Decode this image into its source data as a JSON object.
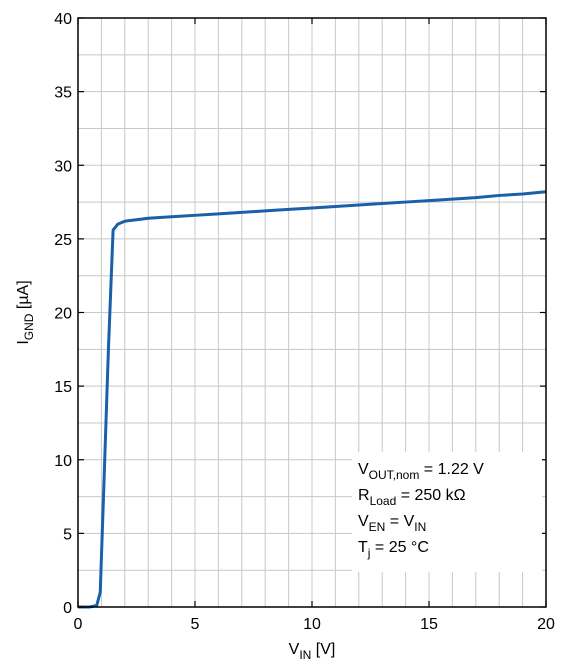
{
  "chart_data": {
    "type": "line",
    "title": "",
    "xlim": [
      0,
      20
    ],
    "ylim": [
      0,
      40
    ],
    "x_ticks": [
      0,
      5,
      10,
      15,
      20
    ],
    "y_ticks": [
      0,
      5,
      10,
      15,
      20,
      25,
      30,
      35,
      40
    ],
    "grid": true,
    "xlabel": {
      "main": "V",
      "sub": "IN",
      "tail": " [V]"
    },
    "ylabel": {
      "main": "I",
      "sub": "GND",
      "tail": " [µA]"
    },
    "line_color": "#1a5fa8",
    "annotations": [
      {
        "main": "V",
        "sub": "OUT,nom",
        "tail": " = 1.22 V"
      },
      {
        "main": "R",
        "sub": "Load",
        "tail": " = 250 kΩ"
      },
      {
        "main": "V",
        "sub": "EN",
        "tail": " = V",
        "sub2": "IN"
      },
      {
        "main": "T",
        "sub": "j",
        "tail": " = 25 °C"
      }
    ],
    "series": [
      {
        "x": [
          0,
          0.5,
          0.8,
          0.95,
          1.1,
          1.3,
          1.5,
          1.7,
          2.0,
          2.5,
          3,
          4,
          5,
          6,
          7,
          8,
          9,
          10,
          11,
          12,
          13,
          14,
          15,
          16,
          17,
          18,
          19,
          20
        ],
        "y": [
          0,
          0,
          0.1,
          1,
          8,
          17.5,
          25.6,
          26.0,
          26.2,
          26.3,
          26.4,
          26.5,
          26.6,
          26.7,
          26.8,
          26.9,
          27.0,
          27.1,
          27.2,
          27.3,
          27.4,
          27.5,
          27.6,
          27.7,
          27.8,
          27.95,
          28.05,
          28.2
        ]
      }
    ]
  }
}
